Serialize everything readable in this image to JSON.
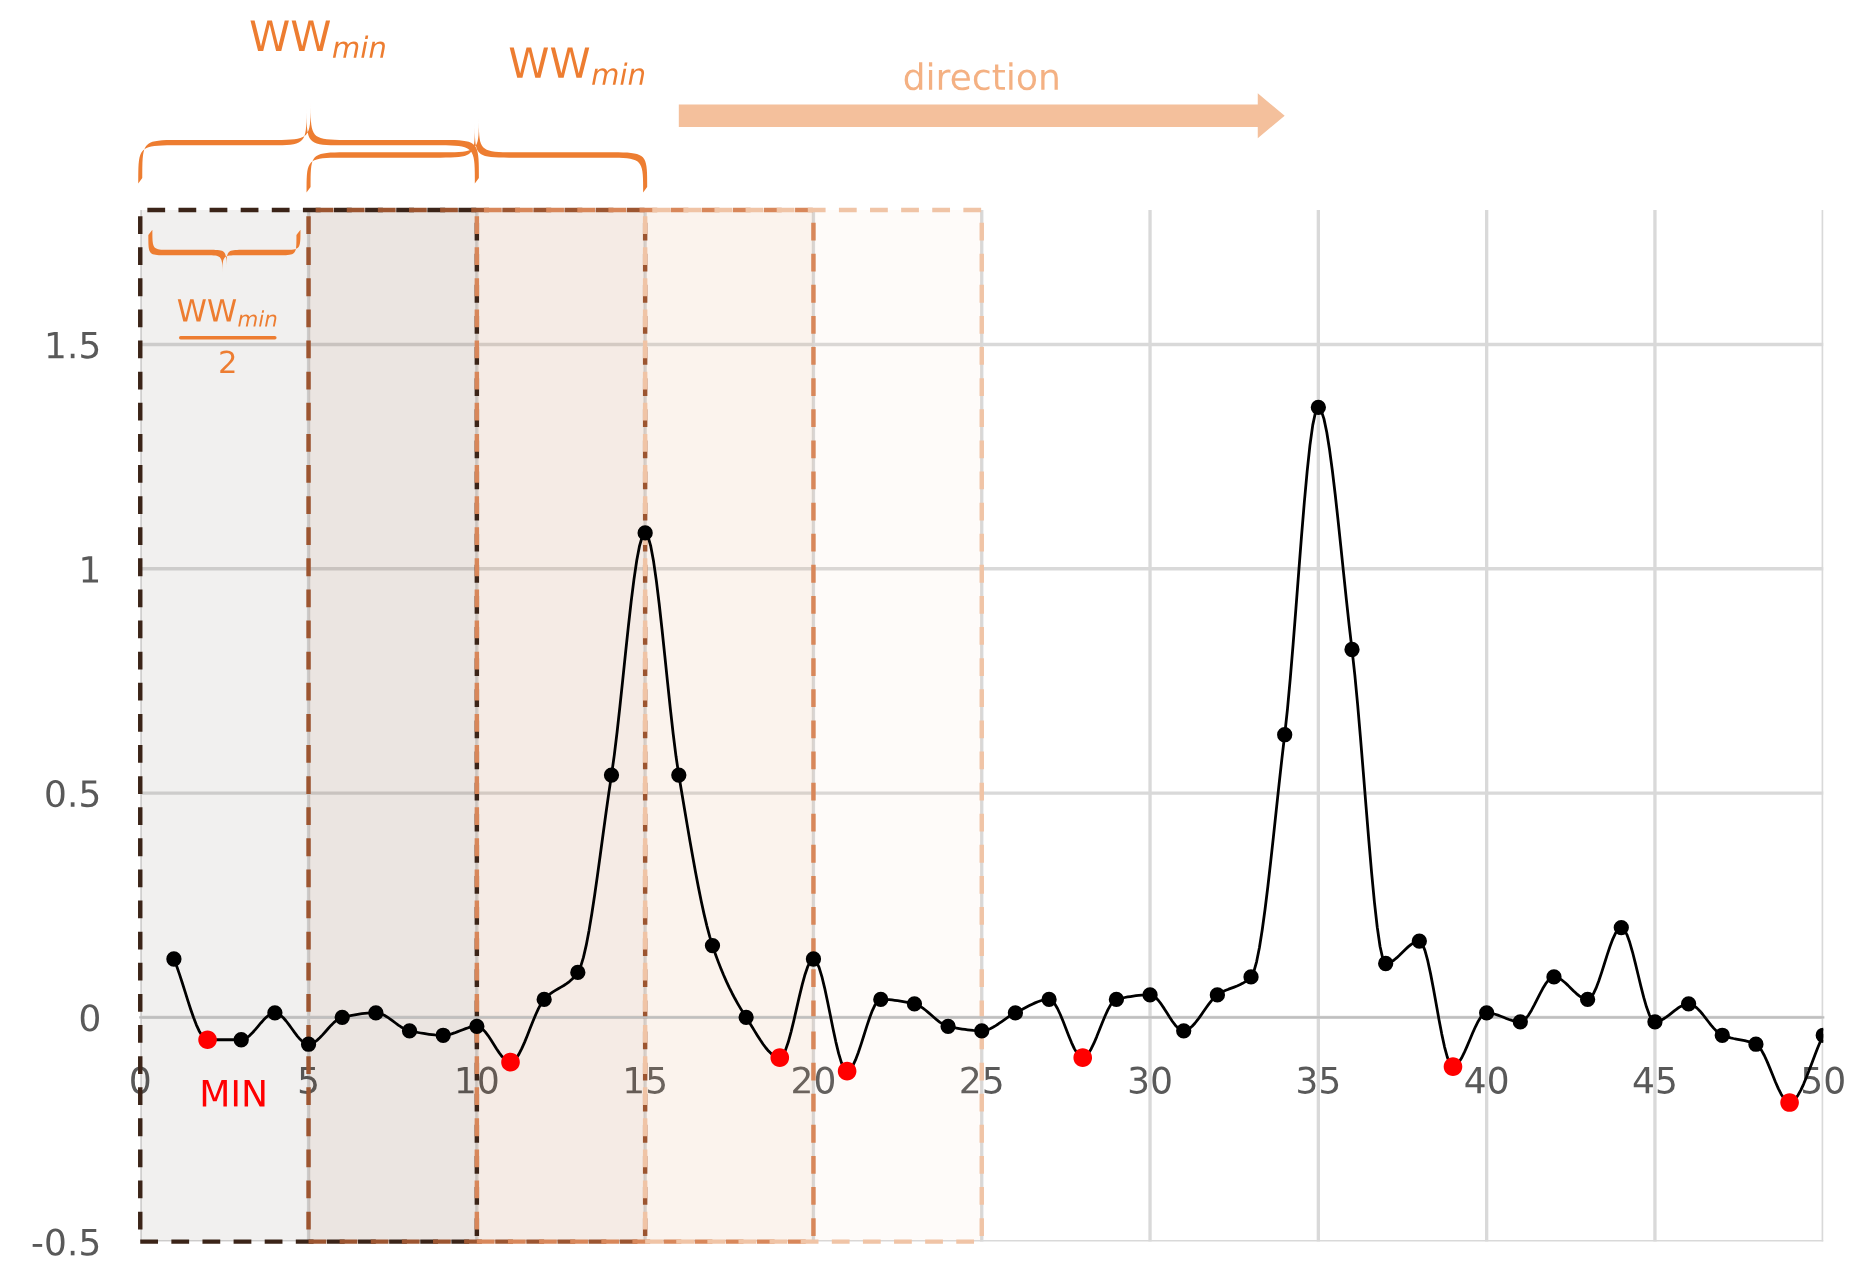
{
  "chart_data": {
    "type": "line",
    "x": [
      1,
      2,
      3,
      4,
      5,
      6,
      7,
      8,
      9,
      10,
      11,
      12,
      13,
      14,
      15,
      16,
      17,
      18,
      19,
      20,
      21,
      22,
      23,
      24,
      25,
      26,
      27,
      28,
      29,
      30,
      31,
      32,
      33,
      34,
      35,
      36,
      37,
      38,
      39,
      40,
      41,
      42,
      43,
      44,
      45,
      46,
      47,
      48,
      49,
      50
    ],
    "series": [
      {
        "color": "#000000",
        "marker": "circle",
        "values": [
          0.13,
          -0.05,
          -0.05,
          0.01,
          -0.06,
          0.0,
          0.01,
          -0.03,
          -0.04,
          -0.02,
          -0.1,
          0.04,
          0.1,
          0.54,
          1.08,
          0.54,
          0.16,
          0.0,
          -0.09,
          0.13,
          -0.12,
          0.04,
          0.03,
          -0.02,
          -0.03,
          0.01,
          0.04,
          -0.09,
          0.04,
          0.05,
          -0.03,
          0.05,
          0.09,
          0.63,
          1.36,
          0.82,
          0.12,
          0.17,
          -0.11,
          0.01,
          -0.01,
          0.09,
          0.04,
          0.2,
          -0.01,
          0.03,
          -0.04,
          -0.06,
          -0.19,
          -0.04
        ]
      },
      {
        "type": "scatter",
        "color": "#ff0000",
        "marker": "circle",
        "x": [
          2,
          11,
          19,
          21,
          28,
          39,
          49
        ],
        "values": [
          -0.05,
          -0.1,
          -0.09,
          -0.12,
          -0.09,
          -0.11,
          -0.19
        ]
      }
    ],
    "xlim": [
      0,
      50
    ],
    "xticks": [
      0,
      5,
      10,
      15,
      20,
      25,
      30,
      35,
      40,
      45,
      50
    ],
    "ylim": [
      -0.5,
      1.8
    ],
    "yticks": [
      -0.5,
      0,
      0.5,
      1,
      1.5
    ],
    "grid": true,
    "bands": [
      {
        "axis": "x",
        "from": 0,
        "to": 10,
        "color": "#3b2418"
      },
      {
        "axis": "x",
        "from": 5,
        "to": 15,
        "color": "#9c5530"
      },
      {
        "axis": "x",
        "from": 10,
        "to": 20,
        "color": "#d8875a"
      },
      {
        "axis": "x",
        "from": 15,
        "to": 25,
        "color": "#f0c4a6"
      }
    ],
    "annotations": [
      "WW$_{min}$",
      "WW$_{min}$",
      "WW$_{min}$",
      "2",
      "direction",
      {
        "text": "MIN",
        "x": 2,
        "y": -0.05
      }
    ]
  }
}
